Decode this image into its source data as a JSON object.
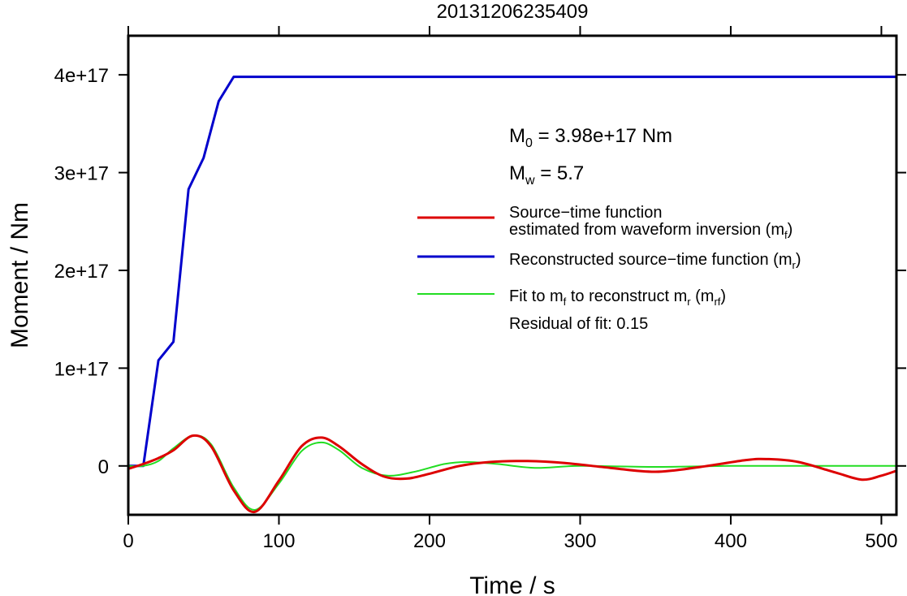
{
  "chart_data": {
    "type": "line",
    "title": "20131206235409",
    "xlabel": "Time / s",
    "ylabel": "Moment / Nm",
    "xlim": [
      0,
      510
    ],
    "ylim": [
      -5e+16,
      4.4e+17
    ],
    "x_ticks": [
      0,
      100,
      200,
      300,
      400,
      500
    ],
    "x_tick_labels": [
      "0",
      "100",
      "200",
      "300",
      "400",
      "500"
    ],
    "y_ticks": [
      0,
      1e+17,
      2e+17,
      3e+17,
      4e+17
    ],
    "y_tick_labels": [
      "0",
      "1e+17",
      "2e+17",
      "3e+17",
      "4e+17"
    ],
    "grid": false,
    "legend_position": "right",
    "annotations": {
      "m0": {
        "symbol": "M",
        "sub": "0",
        "text": " = 3.98e+17 Nm"
      },
      "mw": {
        "symbol": "M",
        "sub": "w",
        "text": " = 5.7"
      },
      "residual": "Residual of fit: 0.15"
    },
    "legend": [
      {
        "key": "red",
        "lines": [
          "Source−time function",
          "estimated from waveform inversion (m"
        ],
        "sub": "f",
        "suffix": ")"
      },
      {
        "key": "blue",
        "prefix": "Reconstructed source−time function (m",
        "sub": "r",
        "suffix": ")"
      },
      {
        "key": "green",
        "parts": [
          "Fit to m",
          "f",
          " to reconstruct m",
          "r",
          " (m",
          "rf",
          ")"
        ]
      }
    ],
    "series": [
      {
        "key": "blue",
        "color": "#0000cc",
        "x": [
          0,
          10,
          20,
          30,
          40,
          50,
          60,
          70,
          510
        ],
        "y": [
          0,
          0,
          1.08e+17,
          1.27e+17,
          2.83e+17,
          3.15e+17,
          3.73e+17,
          3.98e+17,
          3.98e+17
        ]
      },
      {
        "key": "red",
        "color": "#dd0000",
        "x": [
          0,
          10,
          20,
          30,
          43,
          55,
          70,
          84,
          100,
          115,
          128,
          140,
          155,
          170,
          185,
          200,
          220,
          240,
          265,
          290,
          320,
          350,
          380,
          410,
          425,
          445,
          470,
          487,
          500,
          510
        ],
        "y": [
          -3000000000000000.0,
          2000000000000000.0,
          8000000000000000.0,
          1.6e+16,
          3.1e+16,
          2e+16,
          -2.5e+16,
          -4.7e+16,
          -1.5e+16,
          2e+16,
          2.9e+16,
          2e+16,
          2000000000000000.0,
          -1.1e+16,
          -1.3e+16,
          -8000000000000000.0,
          0,
          4000000000000000.0,
          5000000000000000.0,
          3000000000000000.0,
          -2000000000000000.0,
          -6000000000000000.0,
          -1000000000000000.0,
          6000000000000000.0,
          7000000000000000.0,
          4000000000000000.0,
          -7000000000000000.0,
          -1.4e+16,
          -1e+16,
          -5000000000000000.0
        ]
      },
      {
        "key": "green",
        "color": "#22dd22",
        "x": [
          0,
          10,
          20,
          30,
          43,
          55,
          70,
          84,
          100,
          115,
          128,
          140,
          155,
          172,
          190,
          210,
          225,
          245,
          270,
          300,
          350,
          400,
          450,
          510
        ],
        "y": [
          0,
          0,
          5000000000000000.0,
          1.8e+16,
          3.1e+16,
          2.2e+16,
          -2.2e+16,
          -4.5e+16,
          -1.8e+16,
          1.5e+16,
          2.4e+16,
          1.6e+16,
          -2000000000000000.0,
          -1e+16,
          -6000000000000000.0,
          2000000000000000.0,
          4000000000000000.0,
          2000000000000000.0,
          -2000000000000000.0,
          0,
          -1000000000000000.0,
          0,
          0,
          0
        ]
      }
    ]
  }
}
